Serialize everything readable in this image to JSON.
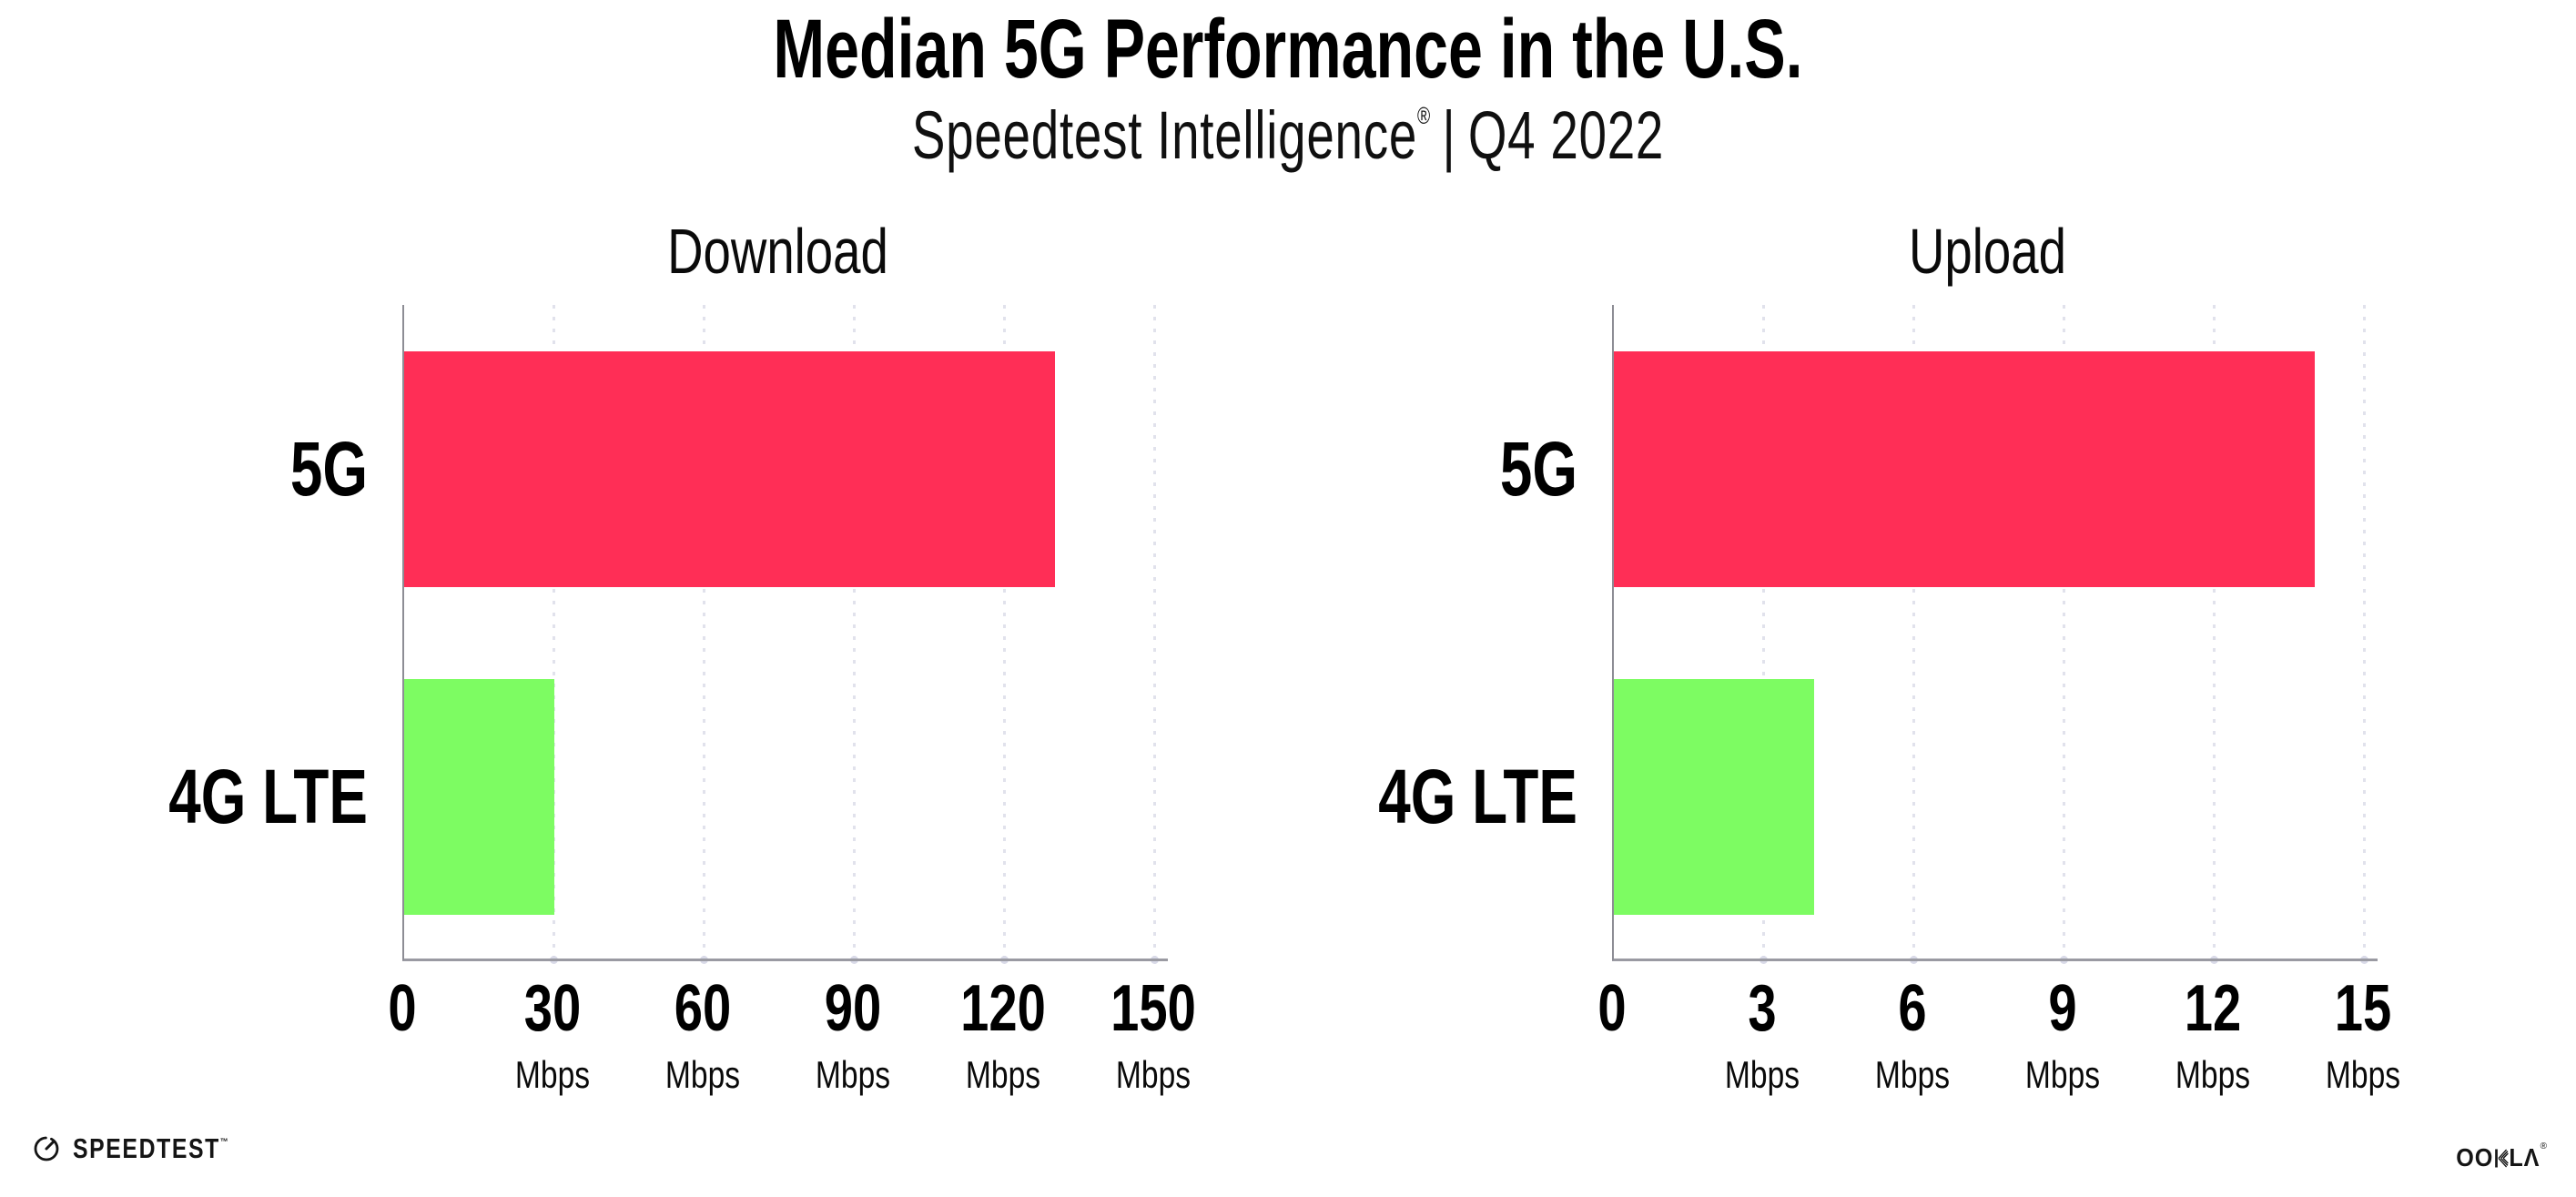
{
  "page": {
    "title": "Median 5G Performance in the U.S.",
    "subtitle_brand": "Speedtest Intelligence",
    "subtitle_reg": "®",
    "subtitle_sep": "|",
    "subtitle_period": "Q4 2022"
  },
  "colors": {
    "bar_5g": "#FF2E56",
    "bar_4g_lte": "#7DFC62",
    "axis_line": "#9A9AA2",
    "grid_dot": "#E1E2EC",
    "text": "#000000"
  },
  "chart_data": [
    {
      "type": "bar",
      "orientation": "horizontal",
      "title": "Download",
      "categories": [
        "5G",
        "4G LTE"
      ],
      "values": [
        130,
        30
      ],
      "unit": "Mbps",
      "xlim": [
        0,
        150
      ],
      "xticks": [
        0,
        30,
        60,
        90,
        120,
        150
      ],
      "xtick_unit": "Mbps",
      "bar_colors": [
        "#FF2E56",
        "#7DFC62"
      ],
      "grid": "vertical-dotted",
      "legend": "none"
    },
    {
      "type": "bar",
      "orientation": "horizontal",
      "title": "Upload",
      "categories": [
        "5G",
        "4G LTE"
      ],
      "values": [
        14,
        4
      ],
      "unit": "Mbps",
      "xlim": [
        0,
        15
      ],
      "xticks": [
        0,
        3,
        6,
        9,
        12,
        15
      ],
      "xtick_unit": "Mbps",
      "bar_colors": [
        "#FF2E56",
        "#7DFC62"
      ],
      "grid": "vertical-dotted",
      "legend": "none"
    }
  ],
  "footer": {
    "speedtest": "SPEEDTEST",
    "speedtest_mark": "™",
    "ookla": "OOKLA",
    "ookla_mark": "®"
  }
}
